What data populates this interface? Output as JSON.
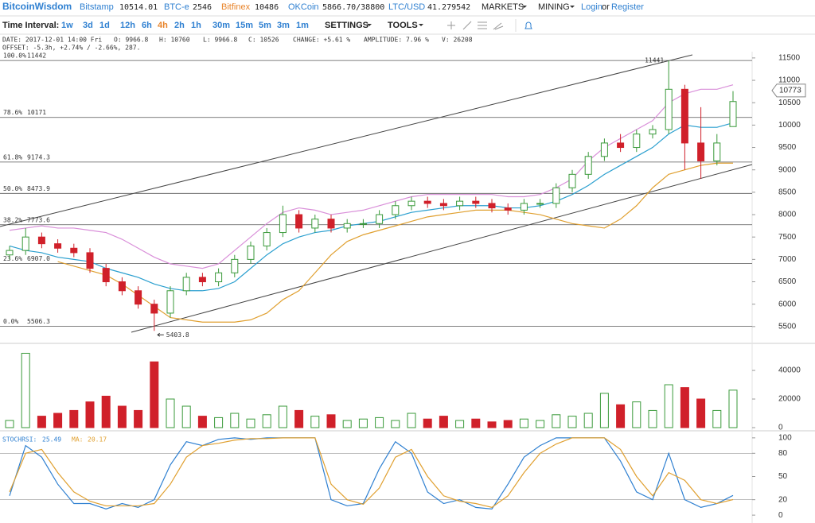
{
  "nav": {
    "brand": "BitcoinWisdom",
    "tickers": [
      {
        "name": "Bitstamp",
        "price": "10514.01"
      },
      {
        "name": "BTC-e",
        "price": "2546"
      },
      {
        "name": "Bitfinex",
        "price": "10486"
      },
      {
        "name": "OKCoin",
        "price": "5866.70/38800"
      },
      {
        "name": "LTC/USD",
        "price": "41.279542"
      }
    ],
    "menus": [
      "MARKETS",
      "MINING"
    ],
    "login": "Login",
    "or": "or",
    "register": "Register"
  },
  "toolbar": {
    "label": "Time Interval:",
    "intervals": [
      "1w",
      "3d",
      "1d",
      "12h",
      "6h",
      "4h",
      "2h",
      "1h",
      "30m",
      "15m",
      "5m",
      "3m",
      "1m"
    ],
    "active": "4h",
    "settings": "SETTINGS",
    "tools": "TOOLS"
  },
  "info": [
    "DATE: 2017-12-01 14:00 Fri",
    "O: 9966.8",
    "H: 10760",
    "L: 9966.8",
    "C: 10526",
    "CHANGE: +5.61 %",
    "AMPLITUDE: 7.96 %",
    "V: 26208"
  ],
  "offset": "OFFSET: -5.3h, +2.74% / -2.66%, 287.",
  "chart_data": [
    {
      "type": "candlestick",
      "open": [
        7100,
        7200,
        7500,
        7350,
        7250,
        7150,
        6800,
        6500,
        6300,
        6000,
        5800,
        6300,
        6600,
        6500,
        6700,
        7000,
        7300,
        7600,
        8000,
        7700,
        7900,
        7700,
        7800,
        7800,
        8000,
        8200,
        8300,
        8250,
        8200,
        8300,
        8250,
        8150,
        8100,
        8250,
        8250,
        8600,
        8900,
        9300,
        9600,
        9500,
        9800,
        9900,
        10800,
        9600,
        9200,
        9966.8
      ],
      "high": [
        7300,
        7700,
        7600,
        7450,
        7350,
        7250,
        6900,
        6600,
        6400,
        6100,
        6400,
        6700,
        6700,
        6800,
        7100,
        7400,
        7700,
        8200,
        8100,
        8000,
        8000,
        7900,
        7900,
        8100,
        8300,
        8400,
        8400,
        8350,
        8400,
        8400,
        8350,
        8250,
        8350,
        8350,
        8700,
        9000,
        9400,
        9700,
        9800,
        9900,
        10000,
        11441,
        10900,
        10400,
        9800,
        10760
      ],
      "low": [
        7000,
        7100,
        7250,
        7150,
        7050,
        6700,
        6400,
        6200,
        5900,
        5403.8,
        5700,
        6200,
        6400,
        6400,
        6600,
        6900,
        7200,
        7500,
        7600,
        7600,
        7600,
        7600,
        7700,
        7700,
        7900,
        8100,
        8150,
        8100,
        8100,
        8150,
        8050,
        8000,
        8000,
        8150,
        8150,
        8500,
        8800,
        9200,
        9400,
        9400,
        9700,
        9800,
        9000,
        8800,
        9100,
        9966.8
      ],
      "close": [
        7200,
        7500,
        7350,
        7250,
        7150,
        6800,
        6500,
        6300,
        6000,
        5800,
        6300,
        6600,
        6500,
        6700,
        7000,
        7300,
        7600,
        8000,
        7700,
        7900,
        7700,
        7800,
        7800,
        8000,
        8200,
        8300,
        8250,
        8200,
        8300,
        8250,
        8150,
        8100,
        8250,
        8250,
        8600,
        8900,
        9300,
        9600,
        9500,
        9800,
        9900,
        10800,
        9600,
        9200,
        9600,
        10526
      ],
      "up_color": "#3a9a3a",
      "down_color": "#d0202a",
      "series": [
        {
          "color": "#d98fd9",
          "values": [
            7650,
            7700,
            7750,
            7700,
            7700,
            7650,
            7600,
            7450,
            7250,
            7050,
            6900,
            6850,
            6800,
            6900,
            7200,
            7500,
            7800,
            8050,
            8150,
            8100,
            8000,
            8050,
            8100,
            8200,
            8300,
            8400,
            8450,
            8450,
            8450,
            8450,
            8450,
            8400,
            8400,
            8450,
            8600,
            8800,
            9200,
            9500,
            9700,
            9900,
            10100,
            10500,
            10700,
            10800,
            10800,
            10900
          ]
        },
        {
          "color": "#2a9fcf",
          "values": [
            7300,
            7200,
            7150,
            7050,
            7000,
            6950,
            6800,
            6700,
            6600,
            6450,
            6350,
            6300,
            6300,
            6350,
            6500,
            6800,
            7100,
            7350,
            7500,
            7600,
            7650,
            7750,
            7800,
            7850,
            7950,
            8050,
            8100,
            8150,
            8200,
            8200,
            8200,
            8150,
            8150,
            8200,
            8300,
            8450,
            8650,
            8900,
            9100,
            9300,
            9500,
            9800,
            10000,
            9950,
            9950,
            10050
          ]
        },
        {
          "color": "#e0a030",
          "values": [
            null,
            null,
            null,
            6950,
            6850,
            6750,
            6650,
            6450,
            6200,
            5950,
            5700,
            5650,
            5600,
            5600,
            5600,
            5650,
            5800,
            6100,
            6300,
            6700,
            7100,
            7400,
            7550,
            7650,
            7750,
            7850,
            7950,
            8000,
            8050,
            8100,
            8100,
            8100,
            8050,
            8000,
            7900,
            7800,
            7750,
            7700,
            7900,
            8200,
            8600,
            8900,
            9000,
            9100,
            9150,
            9150
          ]
        }
      ],
      "fib": [
        {
          "pct": "100.0%",
          "value": 11442
        },
        {
          "pct": "78.6%",
          "value": 10171
        },
        {
          "pct": "61.8%",
          "value": 9174.3
        },
        {
          "pct": "50.0%",
          "value": 8473.9
        },
        {
          "pct": "38.2%",
          "value": 7773.6
        },
        {
          "pct": "23.6%",
          "value": 6907,
          "label": "6907.0"
        },
        {
          "pct": "0.0%",
          "value": 5506.3
        }
      ],
      "last_price": 10773,
      "ylim": [
        5160,
        11640
      ],
      "yticks": [
        5500,
        6000,
        6500,
        7000,
        7500,
        8000,
        8500,
        9000,
        9500,
        10000,
        10500,
        11000,
        11500
      ]
    },
    {
      "type": "bar",
      "values": [
        5000,
        52000,
        8000,
        10000,
        12000,
        18000,
        22000,
        15000,
        12000,
        46000,
        20000,
        15000,
        8000,
        7000,
        10000,
        6000,
        9000,
        15000,
        12000,
        8000,
        9000,
        5000,
        6000,
        7000,
        5000,
        10000,
        6000,
        8000,
        5000,
        6000,
        4000,
        5000,
        6000,
        5000,
        9000,
        8000,
        10000,
        24000,
        16000,
        18000,
        12000,
        30000,
        28000,
        20000,
        12000,
        26208
      ],
      "ylim": [
        0,
        56700
      ],
      "yticks": [
        0,
        20000,
        40000
      ]
    },
    {
      "type": "line",
      "series": [
        {
          "name": "STOCHRSI:",
          "color": "#2f80d1",
          "values": [
            25,
            90,
            75,
            40,
            15,
            15,
            8,
            15,
            10,
            20,
            65,
            95,
            90,
            98,
            100,
            98,
            100,
            100,
            100,
            100,
            20,
            12,
            15,
            60,
            95,
            80,
            30,
            15,
            20,
            10,
            8,
            40,
            75,
            90,
            100,
            100,
            100,
            100,
            70,
            30,
            20,
            80,
            20,
            10,
            15,
            25.49
          ]
        },
        {
          "name": "MA:",
          "color": "#e0a030",
          "values": [
            30,
            80,
            85,
            55,
            30,
            18,
            12,
            12,
            12,
            15,
            40,
            75,
            90,
            93,
            97,
            99,
            99,
            100,
            100,
            100,
            40,
            20,
            14,
            35,
            75,
            85,
            50,
            25,
            18,
            15,
            10,
            25,
            55,
            80,
            92,
            100,
            100,
            100,
            85,
            50,
            25,
            55,
            45,
            20,
            15,
            20.17
          ]
        }
      ],
      "ylim": [
        -4,
        105
      ],
      "yticks": [
        0,
        20,
        50,
        80,
        100
      ],
      "grid_at": [
        20,
        80
      ]
    }
  ]
}
